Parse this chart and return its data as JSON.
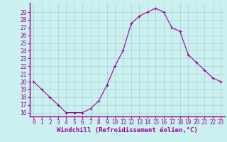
{
  "hours": [
    0,
    1,
    2,
    3,
    4,
    5,
    6,
    7,
    8,
    9,
    10,
    11,
    12,
    13,
    14,
    15,
    16,
    17,
    18,
    19,
    20,
    21,
    22,
    23
  ],
  "values": [
    20.0,
    19.0,
    18.0,
    17.0,
    16.0,
    16.0,
    16.0,
    16.5,
    17.5,
    19.5,
    22.0,
    24.0,
    27.5,
    28.5,
    29.0,
    29.5,
    29.0,
    27.0,
    26.5,
    23.5,
    22.5,
    21.5,
    20.5,
    20.0
  ],
  "line_color": "#990099",
  "marker": "+",
  "marker_size": 3,
  "marker_linewidth": 0.8,
  "background_color": "#cbf0f0",
  "grid_color": "#a0c8c8",
  "xlabel": "Windchill (Refroidissement éolien,°C)",
  "xlabel_fontsize": 6.5,
  "ylabel_ticks": [
    16,
    17,
    18,
    19,
    20,
    21,
    22,
    23,
    24,
    25,
    26,
    27,
    28,
    29
  ],
  "ylim": [
    15.5,
    30.2
  ],
  "xlim": [
    -0.5,
    23.5
  ],
  "tick_fontsize": 5.5,
  "label_color": "#990099",
  "spine_color": "#990099",
  "grid_linewidth": 0.4,
  "line_linewidth": 0.8
}
